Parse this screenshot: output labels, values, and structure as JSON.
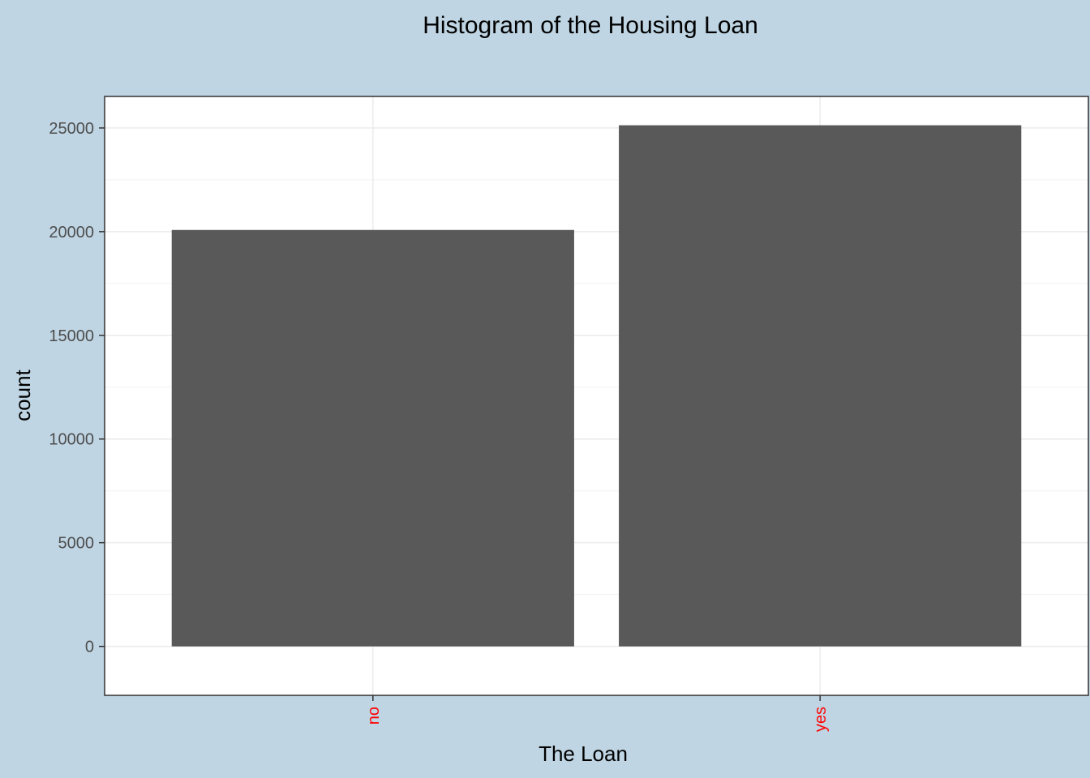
{
  "chart_data": {
    "type": "bar",
    "title": "Histogram of the Housing Loan",
    "xlabel": "The Loan",
    "ylabel": "count",
    "categories": [
      "no",
      "yes"
    ],
    "values": [
      20081,
      25130
    ],
    "ylim": [
      -2360,
      26520
    ],
    "yticks": [
      0,
      5000,
      10000,
      15000,
      20000,
      25000
    ],
    "grid": true,
    "colors": {
      "bar": "#595959",
      "outer_background": "#bfd5e3",
      "panel_background": "#ffffff",
      "panel_border": "#333333",
      "grid_major": "#ebebeb",
      "grid_minor": "#f3f3f3",
      "xtick_label": "#ff0000"
    }
  }
}
